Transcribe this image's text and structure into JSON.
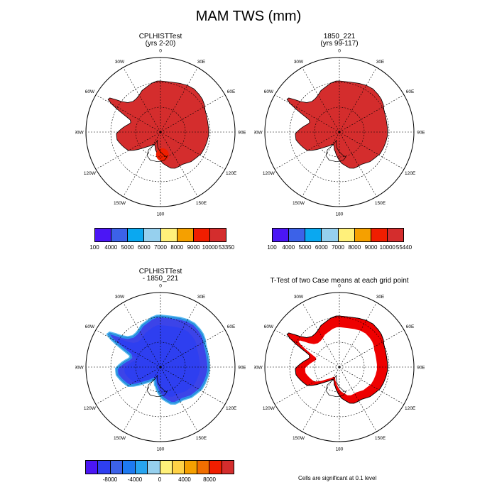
{
  "figure": {
    "title": "MAM TWS (mm)"
  },
  "lon_labels": [
    "0",
    "30E",
    "60E",
    "90E",
    "120E",
    "150E",
    "180",
    "150W",
    "120W",
    "90W",
    "60W",
    "30W"
  ],
  "panels": [
    {
      "title": "CPLHISTTest",
      "subtitle": "(yrs 2-20)",
      "fill": "#d42d2d",
      "style": "solid"
    },
    {
      "title": "1850_221",
      "subtitle": "(yrs 99-117)",
      "fill": "#d42d2d",
      "style": "solid"
    },
    {
      "title": "CPLHISTTest",
      "subtitle": "- 1850_221",
      "fill": "#3c44e8",
      "style": "diff"
    },
    {
      "title": "T-Test of two Case means at each grid point",
      "subtitle": "",
      "fill": "#ee0000",
      "style": "ring"
    }
  ],
  "colorbars": [
    {
      "colors": [
        "#4b16f5",
        "#3c62e8",
        "#0aa8f0",
        "#96d0ee",
        "#fff07a",
        "#f5a000",
        "#f01e00",
        "#d42d2d"
      ],
      "labels": [
        "100",
        "4000",
        "5000",
        "6000",
        "7000",
        "8000",
        "9000",
        "10000",
        "53350"
      ]
    },
    {
      "colors": [
        "#4b16f5",
        "#3c62e8",
        "#0aa8f0",
        "#96d0ee",
        "#fff07a",
        "#f5a000",
        "#f01e00",
        "#d42d2d"
      ],
      "labels": [
        "100",
        "4000",
        "5000",
        "6000",
        "7000",
        "8000",
        "9000",
        "10000",
        "55440"
      ]
    },
    {
      "colors": [
        "#4b16f5",
        "#2e3ff0",
        "#3c62e8",
        "#1e7af0",
        "#28a5f0",
        "#96d0ee",
        "#fff07a",
        "#ffd246",
        "#f5a000",
        "#f06e00",
        "#f01e00",
        "#d42d2d"
      ],
      "labels": [
        "-8000",
        "-4000",
        "0",
        "4000",
        "8000"
      ]
    }
  ],
  "significance_note": "Cells are significant at 0.1 level"
}
